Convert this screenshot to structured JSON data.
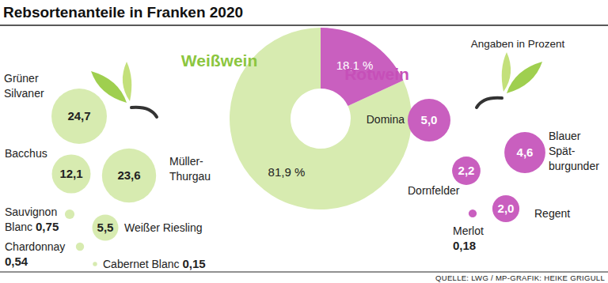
{
  "title": "Rebsortenanteile in Franken 2020",
  "note": "Angaben in Prozent",
  "source": "QUELLE: LWG / MP-GRAFIK: HEIKE GRIGULL",
  "chart_data": [
    {
      "type": "donut",
      "categories": [
        "Weißwein",
        "Rotwein"
      ],
      "values": [
        81.9,
        18.1
      ],
      "value_labels": [
        "81,9 %",
        "18,1 %"
      ],
      "colors": [
        "#d7ebb0",
        "#c95fbf"
      ],
      "data_labels": true
    },
    {
      "type": "bubble",
      "categories": [
        "Grüner\nSilvaner",
        "Bacchus",
        "Müller-\nThurgau",
        "Weißer Riesling",
        "Sauvignon\nBlanc",
        "Chardonnay",
        "Cabernet Blanc"
      ],
      "values": [
        24.7,
        12.1,
        23.6,
        5.5,
        0.75,
        0.54,
        0.15
      ],
      "value_labels": [
        "24,7",
        "12,1",
        "23,6",
        "5,5",
        "0,75",
        "0,54",
        "0,15"
      ],
      "color": "#d7ebb0",
      "data_labels": true
    },
    {
      "type": "bubble",
      "categories": [
        "Domina",
        "Blauer\nSpät-\nburgunder",
        "Dornfelder",
        "Regent",
        "Merlot"
      ],
      "values": [
        5.0,
        4.6,
        2.2,
        2.0,
        0.18
      ],
      "value_labels": [
        "5,0",
        "4,6",
        "2,2",
        "2,0",
        "0,18"
      ],
      "color": "#c95fbf",
      "data_labels": true
    }
  ]
}
